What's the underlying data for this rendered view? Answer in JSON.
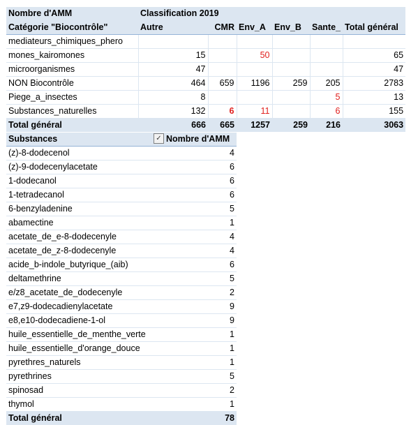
{
  "pivot1": {
    "header_row1": {
      "label": "Nombre d'AMM",
      "classification": "Classification 2019"
    },
    "header_row2": {
      "row_field": "Catégorie \"Biocontrôle\"",
      "columns": [
        "Autre",
        "CMR",
        "Env_A",
        "Env_B",
        "Sante_",
        "Total général"
      ]
    },
    "rows": [
      {
        "label_line1": "mediateurs_chimiques_phero",
        "label_line2": "mones_kairomones",
        "values": [
          "15",
          "",
          "50",
          "",
          "",
          "65"
        ]
      },
      {
        "label": "microorganismes",
        "values": [
          "47",
          "",
          "",
          "",
          "",
          "47"
        ]
      },
      {
        "label": "NON Biocontrôle",
        "values": [
          "464",
          "659",
          "1196",
          "259",
          "205",
          "2783"
        ]
      },
      {
        "label": "Piege_a_insectes",
        "values": [
          "8",
          "",
          "",
          "",
          "5",
          "13"
        ]
      },
      {
        "label": "Substances_naturelles",
        "values": [
          "132",
          "6",
          "11",
          "",
          "6",
          "155"
        ]
      }
    ],
    "total": {
      "label": "Total général",
      "values": [
        "666",
        "665",
        "1257",
        "259",
        "216",
        "3063"
      ]
    },
    "colors": {
      "header_bg": "#dce6f1",
      "highlight_red": "#e0201e"
    }
  },
  "pivot2": {
    "header": {
      "label": "Substances",
      "value_label": "Nombre d'AMM",
      "filter_icon": "filter-sort-icon"
    },
    "rows": [
      {
        "name": "(z)-8-dodecenol",
        "value": "4"
      },
      {
        "name": "(z)-9-dodecenylacetate",
        "value": "6"
      },
      {
        "name": "1-dodecanol",
        "value": "6"
      },
      {
        "name": "1-tetradecanol",
        "value": "6"
      },
      {
        "name": "6-benzyladenine",
        "value": "5"
      },
      {
        "name": "abamectine",
        "value": "1"
      },
      {
        "name": "acetate_de_e-8-dodecenyle",
        "value": "4"
      },
      {
        "name": "acetate_de_z-8-dodecenyle",
        "value": "4"
      },
      {
        "name": "acide_b-indole_butyrique_(aib)",
        "value": "6"
      },
      {
        "name": "deltamethrine",
        "value": "5"
      },
      {
        "name": "e/z8_acetate_de_dodecenyle",
        "value": "2"
      },
      {
        "name": "e7,z9-dodecadienylacetate",
        "value": "9"
      },
      {
        "name": "e8,e10-dodecadiene-1-ol",
        "value": "9"
      },
      {
        "name": "huile_essentielle_de_menthe_verte",
        "value": "1"
      },
      {
        "name": "huile_essentielle_d'orange_douce",
        "value": "1"
      },
      {
        "name": "pyrethres_naturels",
        "value": "1"
      },
      {
        "name": "pyrethrines",
        "value": "5"
      },
      {
        "name": "spinosad",
        "value": "2"
      },
      {
        "name": "thymol",
        "value": "1"
      }
    ],
    "total": {
      "label": "Total général",
      "value": "78"
    }
  }
}
